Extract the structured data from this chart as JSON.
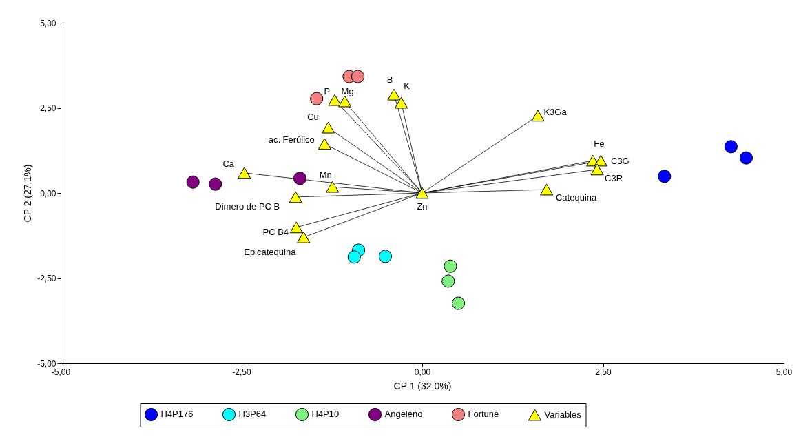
{
  "chart_data": {
    "type": "scatter",
    "xlabel": "CP 1 (32,0%)",
    "ylabel": "CP 2 (27,1%)",
    "xlim": [
      -5,
      5
    ],
    "ylim": [
      -5,
      5
    ],
    "xticks": [
      {
        "value": -5,
        "label": "-5,00"
      },
      {
        "value": -2.5,
        "label": "-2,50"
      },
      {
        "value": 0,
        "label": "0,00"
      },
      {
        "value": 2.5,
        "label": "2,50"
      },
      {
        "value": 5,
        "label": "5,00"
      }
    ],
    "yticks": [
      {
        "value": -5,
        "label": "-5,00"
      },
      {
        "value": -2.5,
        "label": "-2,50"
      },
      {
        "value": 0,
        "label": "0,00"
      },
      {
        "value": 2.5,
        "label": "2,50"
      },
      {
        "value": 5,
        "label": "5,00"
      }
    ],
    "grid": false,
    "legend": "bottom",
    "series": [
      {
        "name": "H4P176",
        "color": "#0000ff",
        "marker": "circle",
        "x": [
          3.35,
          4.27,
          4.48
        ],
        "values": [
          0.49,
          1.36,
          1.03
        ]
      },
      {
        "name": "H3P64",
        "color": "#00ffff",
        "marker": "circle",
        "x": [
          -0.88,
          -0.94,
          -0.51
        ],
        "values": [
          -1.68,
          -1.88,
          -1.86
        ]
      },
      {
        "name": "H4P10",
        "color": "#80f080",
        "marker": "circle",
        "x": [
          0.39,
          0.36,
          0.5
        ],
        "values": [
          -2.15,
          -2.59,
          -3.24
        ]
      },
      {
        "name": "Angeleno",
        "color": "#800080",
        "marker": "circle",
        "x": [
          -3.17,
          -2.86,
          -1.69
        ],
        "values": [
          0.32,
          0.26,
          0.43
        ]
      },
      {
        "name": "Fortune",
        "color": "#f08080",
        "marker": "circle",
        "x": [
          -1.46,
          -1.01,
          -0.89
        ],
        "values": [
          2.77,
          3.42,
          3.42
        ]
      },
      {
        "name": "Variables",
        "color": "#ffff00",
        "marker": "triangle",
        "x": [
          -1.21,
          -1.07,
          -0.39,
          -0.29,
          -1.3,
          -1.35,
          -2.46,
          -1.24,
          -1.75,
          -1.74,
          -1.64,
          0,
          1.6,
          2.36,
          2.47,
          2.42,
          1.72
        ],
        "values": [
          2.73,
          2.69,
          2.89,
          2.65,
          1.92,
          1.44,
          0.59,
          0.18,
          -0.12,
          -1.01,
          -1.3,
          0,
          2.27,
          0.95,
          0.95,
          0.69,
          0.1
        ],
        "value_labels": [
          "P",
          "Mg",
          "B",
          "K",
          "Cu",
          "ac. Ferúlico",
          "Ca",
          "Mn",
          "Dimero de PC B",
          "PC B4",
          "Epicatequina",
          "Zn",
          "K3Ga",
          "Fe",
          "C3G",
          "C3R",
          "Catequina"
        ]
      }
    ]
  }
}
